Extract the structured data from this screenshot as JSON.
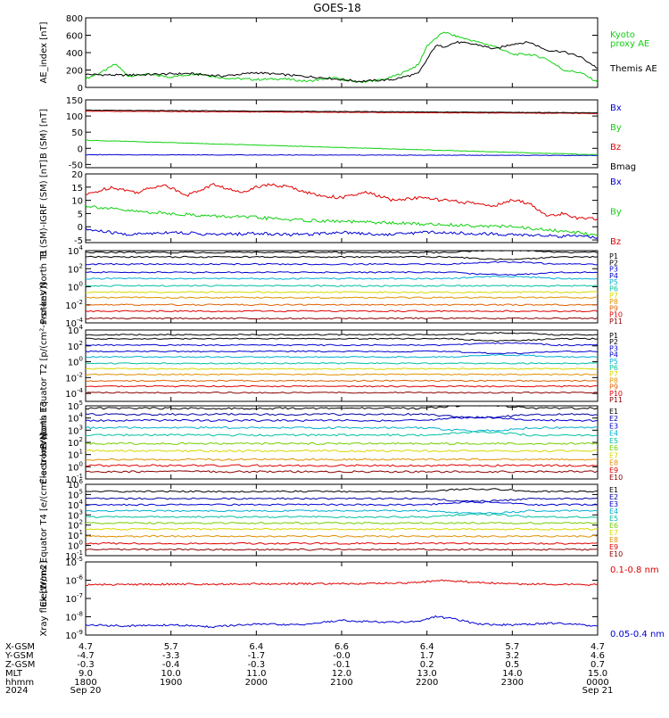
{
  "title": "GOES-18",
  "colors": {
    "black": "#000000",
    "green": "#10d010",
    "red": "#e00000",
    "darkred": "#8b0000",
    "blue": "#0000d0",
    "navy": "#0000a0",
    "cyan": "#00b0d0",
    "teal": "#00c0a0",
    "lime": "#70d000",
    "yellow": "#d8d800",
    "orange": "#e09000",
    "dorange": "#e06000"
  },
  "xaxis": {
    "start_hour": 18,
    "end_hour": 24,
    "rows": [
      {
        "label": "X-GSM",
        "values": [
          "4.7",
          "5.7",
          "6.4",
          "6.6",
          "6.4",
          "5.7",
          "4.7"
        ]
      },
      {
        "label": "Y-GSM",
        "values": [
          "-4.7",
          "-3.3",
          "-1.7",
          "-0.0",
          "1.7",
          "3.2",
          "4.6"
        ]
      },
      {
        "label": "Z-GSM",
        "values": [
          "-0.3",
          "-0.4",
          "-0.3",
          "-0.1",
          "0.2",
          "0.5",
          "0.7"
        ]
      },
      {
        "label": "MLT",
        "values": [
          "9.0",
          "10.0",
          "11.0",
          "12.0",
          "13.0",
          "14.0",
          "15.0"
        ]
      },
      {
        "label": "hhmm",
        "values": [
          "1800",
          "1900",
          "2000",
          "2100",
          "2200",
          "2300",
          "0000"
        ]
      },
      {
        "label": "2024",
        "values": [
          "Sep 20",
          "",
          "",
          "",
          "",
          "",
          "Sep 21"
        ]
      }
    ]
  },
  "chart_data": [
    {
      "type": "line",
      "ylabel": "AE_index [nT]",
      "ylim": [
        0,
        800
      ],
      "log": false,
      "yticks": [
        "0",
        "200",
        "400",
        "600",
        "800"
      ],
      "legend": [
        {
          "text": "Kyoto",
          "color": "#10d010"
        },
        {
          "text": "proxy AE",
          "color": "#10d010"
        },
        {
          "text": "Themis AE",
          "color": "#000000"
        }
      ],
      "series": [
        {
          "name": "Kyoto proxy AE",
          "color": "#10d010",
          "x": [
            18.0,
            18.2,
            18.35,
            18.5,
            18.7,
            19.0,
            19.3,
            19.6,
            20.0,
            20.3,
            20.6,
            20.9,
            21.2,
            21.5,
            21.7,
            21.9,
            22.0,
            22.1,
            22.2,
            22.3,
            22.45,
            22.6,
            22.8,
            23.0,
            23.2,
            23.4,
            23.6,
            23.8,
            24.0
          ],
          "y": [
            100,
            180,
            270,
            130,
            150,
            120,
            160,
            110,
            90,
            100,
            70,
            110,
            60,
            90,
            160,
            260,
            480,
            560,
            640,
            600,
            560,
            520,
            470,
            380,
            380,
            330,
            200,
            170,
            60
          ]
        },
        {
          "name": "Themis AE",
          "color": "#000000",
          "x": [
            18.0,
            18.4,
            18.8,
            19.2,
            19.6,
            20.0,
            20.4,
            20.8,
            21.2,
            21.6,
            21.9,
            22.0,
            22.1,
            22.2,
            22.35,
            22.6,
            22.8,
            23.0,
            23.2,
            23.4,
            23.6,
            23.8,
            24.0
          ],
          "y": [
            150,
            140,
            150,
            160,
            130,
            170,
            140,
            110,
            70,
            90,
            160,
            320,
            480,
            470,
            520,
            490,
            440,
            500,
            520,
            430,
            410,
            350,
            220
          ]
        }
      ]
    },
    {
      "type": "line",
      "ylabel": "B (SM) [nT]",
      "ylim": [
        -60,
        150
      ],
      "log": false,
      "yticks": [
        "-50",
        "0",
        "50",
        "100",
        "150"
      ],
      "legend": [
        {
          "text": "Bx",
          "color": "#0000d0"
        },
        {
          "text": "By",
          "color": "#10d010"
        },
        {
          "text": "Bz",
          "color": "#e00000"
        },
        {
          "text": "Bmag",
          "color": "#000000"
        }
      ],
      "series": [
        {
          "name": "Bx",
          "color": "#0000d0",
          "x": [
            18,
            24
          ],
          "y": [
            -20,
            -22
          ]
        },
        {
          "name": "By",
          "color": "#10d010",
          "x": [
            18,
            24
          ],
          "y": [
            25,
            -20
          ]
        },
        {
          "name": "Bz",
          "color": "#e00000",
          "x": [
            18,
            24
          ],
          "y": [
            115,
            108
          ]
        },
        {
          "name": "Bmag",
          "color": "#000000",
          "x": [
            18,
            24
          ],
          "y": [
            118,
            110
          ]
        }
      ]
    },
    {
      "type": "line",
      "ylabel": "B (SM)-IGRF (SM) [nT]",
      "ylim": [
        -6,
        20
      ],
      "log": false,
      "yticks": [
        "-5",
        "0",
        "5",
        "10",
        "15",
        "20"
      ],
      "legend": [
        {
          "text": "Bx",
          "color": "#0000d0"
        },
        {
          "text": "By",
          "color": "#10d010"
        },
        {
          "text": "Bz",
          "color": "#e00000"
        }
      ],
      "series": [
        {
          "name": "Bz",
          "color": "#e00000",
          "x": [
            18.0,
            18.3,
            18.6,
            18.9,
            19.2,
            19.5,
            19.8,
            20.1,
            20.4,
            20.7,
            21.0,
            21.3,
            21.6,
            21.9,
            22.2,
            22.5,
            22.8,
            23.0,
            23.2,
            23.4,
            23.6,
            23.8,
            24.0
          ],
          "y": [
            12,
            15,
            13,
            16,
            12,
            16,
            13,
            16,
            15,
            12,
            11,
            13,
            10,
            11,
            10,
            9,
            8,
            10,
            9,
            4,
            5,
            3,
            3
          ]
        },
        {
          "name": "By",
          "color": "#10d010",
          "x": [
            18.0,
            18.5,
            19.0,
            19.5,
            20.0,
            20.5,
            21.0,
            21.5,
            22.0,
            22.5,
            23.0,
            23.5,
            24.0
          ],
          "y": [
            8,
            6,
            5,
            4,
            3.5,
            2.5,
            2,
            1.5,
            1,
            0.5,
            0,
            -1.5,
            -3
          ]
        },
        {
          "name": "Bx",
          "color": "#0000d0",
          "x": [
            18.0,
            18.5,
            19.0,
            19.5,
            20.0,
            20.5,
            21.0,
            21.5,
            22.0,
            22.5,
            23.0,
            23.5,
            24.0
          ],
          "y": [
            -1,
            -3,
            -2,
            -3,
            -2.5,
            -3,
            -2,
            -3,
            -2,
            -2.5,
            -3,
            -3.5,
            -4
          ]
        }
      ]
    },
    {
      "type": "line",
      "ylabel": "Protons North T1",
      "log": true,
      "ylim": [
        -4,
        4
      ],
      "yticks": [
        "10^-4",
        "10^-2",
        "10^0",
        "10^2",
        "10^4"
      ],
      "legend_names": [
        "P1",
        "P2",
        "P3",
        "P4",
        "P5",
        "P6",
        "P7",
        "P8",
        "P9",
        "P10",
        "P11"
      ],
      "legend_colors": [
        "#000000",
        "#000000",
        "#0000d0",
        "#0000d0",
        "#00b0d0",
        "#00c0a0",
        "#d8d800",
        "#e09000",
        "#e06000",
        "#e00000",
        "#8b0000"
      ],
      "levels": [
        3.8,
        3.3,
        2.5,
        1.6,
        0.9,
        0.1,
        -0.6,
        -1.2,
        -2.0,
        -2.7,
        -3.5
      ],
      "feature_x": 22.9
    },
    {
      "type": "line",
      "ylabel": "Protons Equator T2 [p/(cm²-s-sr-keV)]",
      "log": true,
      "ylim": [
        -5,
        4
      ],
      "yticks": [
        "10^-4",
        "10^-2",
        "10^0",
        "10^2",
        "10^4"
      ],
      "legend_names": [
        "P1",
        "P2",
        "P3",
        "P4",
        "P5",
        "P6",
        "P7",
        "P8",
        "P9",
        "P10",
        "P11"
      ],
      "legend_colors": [
        "#000000",
        "#000000",
        "#0000d0",
        "#0000d0",
        "#00b0d0",
        "#00c0a0",
        "#d8d800",
        "#e09000",
        "#e06000",
        "#e00000",
        "#8b0000"
      ],
      "levels": [
        3.4,
        2.9,
        2.1,
        1.3,
        0.6,
        -0.2,
        -0.9,
        -1.6,
        -2.4,
        -3.1,
        -3.9
      ],
      "feature_x": 22.9
    },
    {
      "type": "line",
      "ylabel": "Electrons North T3",
      "log": true,
      "ylim": [
        -1,
        5
      ],
      "yticks": [
        "10^-1",
        "10^0",
        "10^1",
        "10^2",
        "10^3",
        "10^4",
        "10^5"
      ],
      "legend_names": [
        "E1",
        "E2",
        "E3",
        "E4",
        "E5",
        "E6",
        "E7",
        "E8",
        "E9",
        "E10"
      ],
      "legend_colors": [
        "#000000",
        "#0000a0",
        "#0000d0",
        "#00b0d0",
        "#00c0a0",
        "#70d000",
        "#d8d800",
        "#e09000",
        "#e00000",
        "#8b0000"
      ],
      "levels": [
        4.8,
        4.3,
        3.8,
        3.2,
        2.6,
        1.9,
        1.3,
        0.6,
        0.1,
        -0.4
      ],
      "feature_x": 22.6
    },
    {
      "type": "line",
      "ylabel": "Electrons Equator T4 [e/(cm²-s-sr-keV)]",
      "log": true,
      "ylim": [
        -1,
        6
      ],
      "yticks": [
        "10^-1",
        "10^0",
        "10^1",
        "10^2",
        "10^3",
        "10^4",
        "10^5",
        "10^6"
      ],
      "legend_names": [
        "E1",
        "E2",
        "E3",
        "E4",
        "E5",
        "E6",
        "E7",
        "E8",
        "E9",
        "E10"
      ],
      "legend_colors": [
        "#000000",
        "#0000a0",
        "#0000d0",
        "#00b0d0",
        "#00c0a0",
        "#70d000",
        "#d8d800",
        "#e09000",
        "#e00000",
        "#8b0000"
      ],
      "levels": [
        5.3,
        4.6,
        4.0,
        3.4,
        2.8,
        2.2,
        1.6,
        0.9,
        0.2,
        -0.4
      ],
      "feature_x": 22.6
    },
    {
      "type": "line",
      "ylabel": "Xray flux [W/m2]",
      "log": true,
      "ylim": [
        -9,
        -5
      ],
      "yticks": [
        "10^-9",
        "10^-8",
        "10^-7",
        "10^-6",
        "10^-5"
      ],
      "legend": [
        {
          "text": "0.1-0.8 nm",
          "color": "#e00000"
        },
        {
          "text": "0.05-0.4 nm",
          "color": "#0000d0"
        }
      ],
      "series": [
        {
          "name": "0.1-0.8 nm",
          "color": "#e00000",
          "x": [
            18.0,
            19.0,
            20.0,
            21.0,
            21.8,
            22.2,
            22.5,
            23.0,
            24.0
          ],
          "y": [
            -6.25,
            -6.22,
            -6.2,
            -6.2,
            -6.15,
            -6.0,
            -6.1,
            -6.2,
            -6.25
          ]
        },
        {
          "name": "0.05-0.4 nm",
          "color": "#0000d0",
          "x": [
            18.0,
            18.5,
            19.0,
            19.5,
            20.0,
            20.5,
            21.0,
            21.5,
            21.9,
            22.1,
            22.3,
            22.6,
            23.0,
            23.5,
            24.0
          ],
          "y": [
            -8.45,
            -8.5,
            -8.45,
            -8.55,
            -8.4,
            -8.45,
            -8.2,
            -8.3,
            -8.25,
            -8.0,
            -8.1,
            -8.4,
            -8.45,
            -8.35,
            -8.5
          ]
        }
      ]
    }
  ]
}
